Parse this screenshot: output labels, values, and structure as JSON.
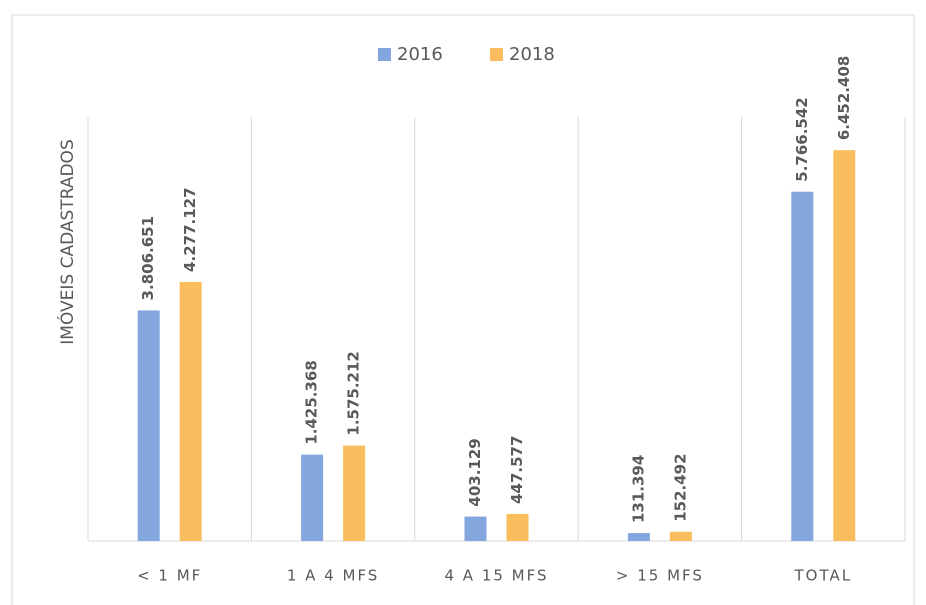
{
  "chart_data": {
    "type": "bar",
    "y_label": "IMÓVEIS CADASTRADOS",
    "categories": [
      "< 1 MF",
      "1 A 4 MFS",
      "4 A 15 MFS",
      "> 15 MFS",
      "TOTAL"
    ],
    "series": [
      {
        "name": "2016",
        "color": "#84a6de",
        "values": [
          3806651,
          1425368,
          403129,
          131394,
          5766542
        ],
        "value_labels": [
          "3.806.651",
          "1.425.368",
          "403.129",
          "131.394",
          "5.766.542"
        ]
      },
      {
        "name": "2018",
        "color": "#f9bd5e",
        "values": [
          4277127,
          1575212,
          447577,
          152492,
          6452408
        ],
        "value_labels": [
          "4.277.127",
          "1.575.212",
          "447.577",
          "152.492",
          "6.452.408"
        ]
      }
    ],
    "ylim": [
      0,
      7000000
    ],
    "legend": "top"
  }
}
